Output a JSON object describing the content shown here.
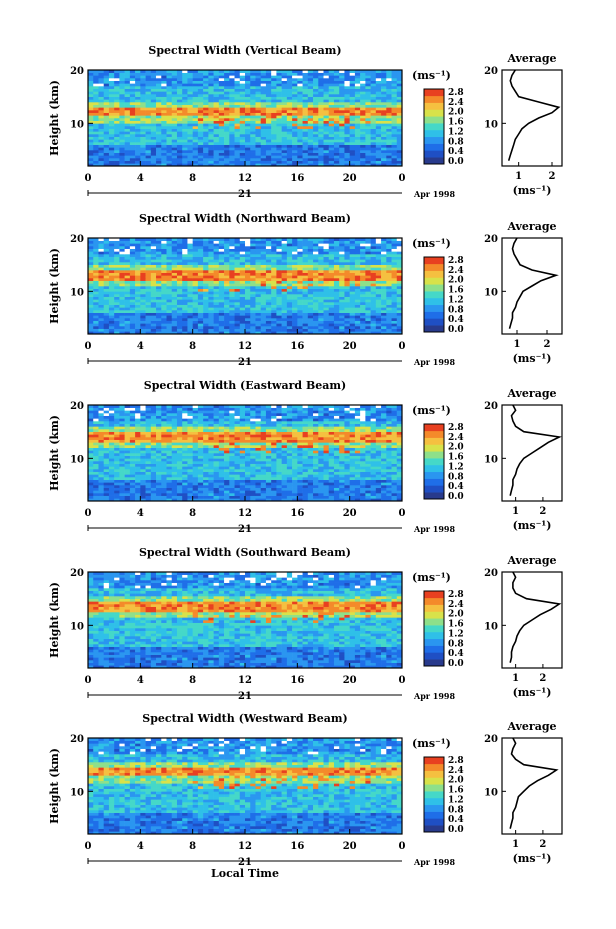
{
  "colors": {
    "colorbar": [
      "#283a8c",
      "#1f4fc4",
      "#1f6ee8",
      "#2a96f0",
      "#2fc0e8",
      "#45d8c8",
      "#8ee08a",
      "#d8e24a",
      "#f5c040",
      "#f48a2a",
      "#e84020"
    ],
    "background_band": "#33b4e6",
    "high_band": "#e83a1a"
  },
  "chart_data": [
    {
      "type": "heatmap",
      "title": "Spectral Width (Vertical Beam)",
      "ylabel": "Height (km)",
      "ylim": [
        2,
        20
      ],
      "yticks": [
        "20",
        "10"
      ],
      "xlim": [
        0,
        24
      ],
      "xticks": [
        "0",
        "4",
        "8",
        "12",
        "16",
        "20",
        "0"
      ],
      "day_label": "21",
      "date_label": "Apr 1998",
      "colorbar": {
        "unit": "(ms⁻¹)",
        "ticks": [
          "2.8",
          "2.4",
          "2.0",
          "1.6",
          "1.2",
          "0.8",
          "0.4",
          "0.0"
        ]
      },
      "high_layer_km": 12.2,
      "profile": {
        "title": "Average",
        "xlabel": "(ms⁻¹)",
        "xticks": [
          "1",
          "2"
        ],
        "xlim": [
          0.5,
          2.3
        ],
        "yticks": [
          "20",
          "10"
        ],
        "heights": [
          3,
          4,
          5,
          6,
          7,
          8,
          9,
          10,
          11,
          12,
          13,
          14,
          15,
          16,
          17,
          18,
          19,
          20
        ],
        "values": [
          0.7,
          0.75,
          0.8,
          0.85,
          0.9,
          1.0,
          1.1,
          1.3,
          1.6,
          2.0,
          2.2,
          1.6,
          1.0,
          0.9,
          0.8,
          0.75,
          0.8,
          0.9
        ]
      }
    },
    {
      "type": "heatmap",
      "title": "Spectral Width (Northward Beam)",
      "ylabel": "Height (km)",
      "ylim": [
        2,
        20
      ],
      "yticks": [
        "20",
        "10"
      ],
      "xlim": [
        0,
        24
      ],
      "xticks": [
        "0",
        "4",
        "8",
        "12",
        "16",
        "20",
        "0"
      ],
      "day_label": "21",
      "date_label": "Apr 1998",
      "colorbar": {
        "unit": "(ms⁻¹)",
        "ticks": [
          "2.8",
          "2.4",
          "2.0",
          "1.6",
          "1.2",
          "0.8",
          "0.4",
          "0.0"
        ]
      },
      "high_layer_km": 13.0,
      "profile": {
        "title": "Average",
        "xlabel": "(ms⁻¹)",
        "xticks": [
          "1",
          "2"
        ],
        "xlim": [
          0.5,
          2.5
        ],
        "yticks": [
          "20",
          "10"
        ],
        "heights": [
          3,
          4,
          5,
          6,
          7,
          8,
          9,
          10,
          11,
          12,
          13,
          14,
          15,
          16,
          17,
          18,
          19,
          20
        ],
        "values": [
          0.75,
          0.8,
          0.85,
          0.85,
          0.95,
          1.0,
          1.1,
          1.2,
          1.5,
          1.8,
          2.3,
          1.5,
          1.1,
          1.0,
          0.9,
          0.85,
          0.9,
          1.0
        ]
      }
    },
    {
      "type": "heatmap",
      "title": "Spectral Width (Eastward Beam)",
      "ylabel": "Height (km)",
      "ylim": [
        2,
        20
      ],
      "yticks": [
        "20",
        "10"
      ],
      "xlim": [
        0,
        24
      ],
      "xticks": [
        "0",
        "4",
        "8",
        "12",
        "16",
        "20",
        "0"
      ],
      "day_label": "21",
      "date_label": "Apr 1998",
      "colorbar": {
        "unit": "(ms⁻¹)",
        "ticks": [
          "2.8",
          "2.4",
          "2.0",
          "1.6",
          "1.2",
          "0.8",
          "0.4",
          "0.0"
        ]
      },
      "high_layer_km": 14.0,
      "profile": {
        "title": "Average",
        "xlabel": "(ms⁻¹)",
        "xticks": [
          "1",
          "2"
        ],
        "xlim": [
          0.5,
          2.7
        ],
        "yticks": [
          "20",
          "10"
        ],
        "heights": [
          3,
          4,
          5,
          6,
          7,
          8,
          9,
          10,
          11,
          12,
          13,
          14,
          15,
          16,
          17,
          18,
          19,
          20
        ],
        "values": [
          0.8,
          0.85,
          0.9,
          0.9,
          1.0,
          1.05,
          1.15,
          1.3,
          1.6,
          1.9,
          2.2,
          2.6,
          1.3,
          1.0,
          0.9,
          0.85,
          1.0,
          0.9
        ]
      }
    },
    {
      "type": "heatmap",
      "title": "Spectral Width (Southward Beam)",
      "ylabel": "Height (km)",
      "ylim": [
        2,
        20
      ],
      "yticks": [
        "20",
        "10"
      ],
      "xlim": [
        0,
        24
      ],
      "xticks": [
        "0",
        "4",
        "8",
        "12",
        "16",
        "20",
        "0"
      ],
      "day_label": "21",
      "date_label": "Apr 1998",
      "colorbar": {
        "unit": "(ms⁻¹)",
        "ticks": [
          "2.8",
          "2.4",
          "2.0",
          "1.6",
          "1.2",
          "0.8",
          "0.4",
          "0.0"
        ]
      },
      "high_layer_km": 13.5,
      "profile": {
        "title": "Average",
        "xlabel": "(ms⁻¹)",
        "xticks": [
          "1",
          "2"
        ],
        "xlim": [
          0.5,
          2.7
        ],
        "yticks": [
          "20",
          "10"
        ],
        "heights": [
          3,
          4,
          5,
          6,
          7,
          8,
          9,
          10,
          11,
          12,
          13,
          14,
          15,
          16,
          17,
          18,
          19,
          20
        ],
        "values": [
          0.8,
          0.85,
          0.85,
          0.9,
          1.0,
          1.05,
          1.15,
          1.3,
          1.6,
          1.9,
          2.3,
          2.6,
          1.4,
          1.0,
          0.9,
          0.9,
          1.0,
          0.9
        ]
      }
    },
    {
      "type": "heatmap",
      "title": "Spectral Width (Westward Beam)",
      "ylabel": "Height (km)",
      "ylim": [
        2,
        20
      ],
      "yticks": [
        "20",
        "10"
      ],
      "xlim": [
        0,
        24
      ],
      "xticks": [
        "0",
        "4",
        "8",
        "12",
        "16",
        "20",
        "0"
      ],
      "day_label": "21",
      "date_label": "Apr 1998",
      "xlabel": "Local Time",
      "colorbar": {
        "unit": "(ms⁻¹)",
        "ticks": [
          "2.8",
          "2.4",
          "2.0",
          "1.6",
          "1.2",
          "0.8",
          "0.4",
          "0.0"
        ]
      },
      "high_layer_km": 13.7,
      "profile": {
        "title": "Average",
        "xlabel": "(ms⁻¹)",
        "xticks": [
          "1",
          "2"
        ],
        "xlim": [
          0.5,
          2.7
        ],
        "yticks": [
          "20",
          "10"
        ],
        "heights": [
          3,
          4,
          5,
          6,
          7,
          8,
          9,
          10,
          11,
          12,
          13,
          14,
          15,
          16,
          17,
          18,
          19,
          20
        ],
        "values": [
          0.8,
          0.85,
          0.9,
          0.9,
          1.0,
          1.05,
          1.1,
          1.3,
          1.5,
          1.8,
          2.2,
          2.5,
          1.3,
          1.0,
          0.85,
          0.9,
          1.0,
          0.9
        ]
      }
    }
  ]
}
